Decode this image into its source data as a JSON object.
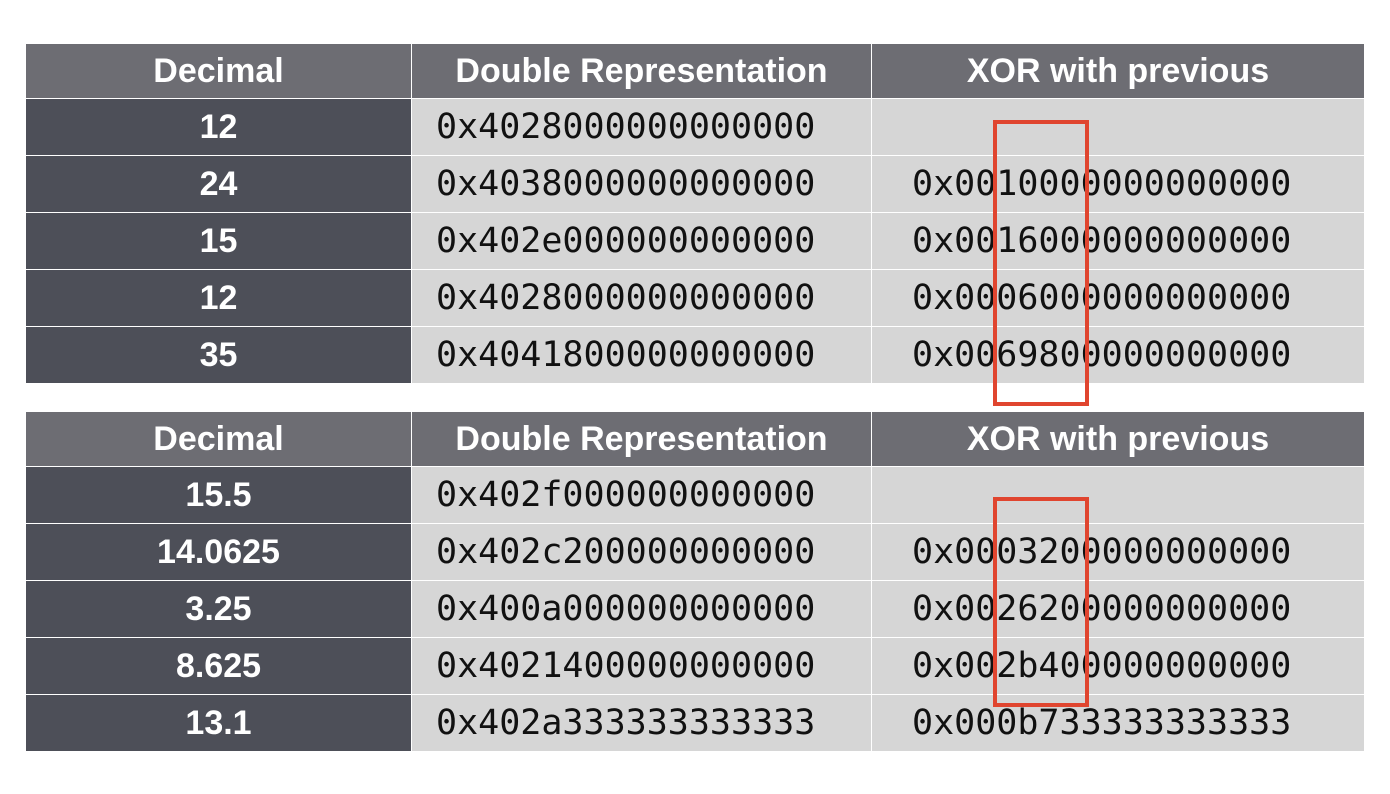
{
  "headers": [
    "Decimal",
    "Double Representation",
    "XOR with previous"
  ],
  "table1": {
    "rows": [
      {
        "decimal": "12",
        "double": "0x4028000000000000",
        "xor": ""
      },
      {
        "decimal": "24",
        "double": "0x4038000000000000",
        "xor": "0x0010000000000000"
      },
      {
        "decimal": "15",
        "double": "0x402e000000000000",
        "xor": "0x0016000000000000"
      },
      {
        "decimal": "12",
        "double": "0x4028000000000000",
        "xor": "0x0006000000000000"
      },
      {
        "decimal": "35",
        "double": "0x4041800000000000",
        "xor": "0x0069800000000000"
      }
    ]
  },
  "table2": {
    "rows": [
      {
        "decimal": "15.5",
        "double": "0x402f000000000000",
        "xor": ""
      },
      {
        "decimal": "14.0625",
        "double": "0x402c200000000000",
        "xor": "0x0003200000000000"
      },
      {
        "decimal": "3.25",
        "double": "0x400a000000000000",
        "xor": "0x0026200000000000"
      },
      {
        "decimal": "8.625",
        "double": "0x4021400000000000",
        "xor": "0x002b400000000000"
      },
      {
        "decimal": "13.1",
        "double": "0x402a333333333333",
        "xor": "0x000b733333333333"
      }
    ]
  },
  "highlight_color": "#e0452f"
}
